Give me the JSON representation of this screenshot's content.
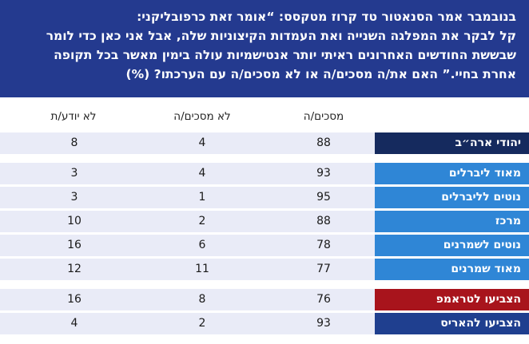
{
  "question": {
    "lines": [
      "בנובמבר אמר הסנאטור טד קרוז מטקסס: “אומר זאת כרפובליקני:",
      "קל לבקר את המפלגה השנייה ואת העמדות הקיצוניות שלה, אבל אני כאן כדי לומר",
      "שבששת החודשים האחרונים ראיתי יותר אנטישמיות עולה בימין מאשר בכל תקופה",
      "אחרת בחיי.” האם את/ה מסכים/ה או לא מסכים/ה עם הערכתו? (%)"
    ]
  },
  "chart_data": {
    "type": "table",
    "columns": [
      "מסכים/ה",
      "לא מסכים/ה",
      "לא יודע/ת"
    ],
    "groups": [
      {
        "rows": [
          {
            "label": "יהודי ארה״ב",
            "color": "#152a5e",
            "values": [
              88,
              4,
              8
            ]
          }
        ]
      },
      {
        "rows": [
          {
            "label": "מאוד ליברלים",
            "color": "#2f86d6",
            "values": [
              93,
              4,
              3
            ]
          },
          {
            "label": "נוטים לליברלים",
            "color": "#2f86d6",
            "values": [
              95,
              1,
              3
            ]
          },
          {
            "label": "מרכז",
            "color": "#2f86d6",
            "values": [
              88,
              2,
              10
            ]
          },
          {
            "label": "נוטים לשמרנים",
            "color": "#2f86d6",
            "values": [
              78,
              6,
              16
            ]
          },
          {
            "label": "מאוד שמרנים",
            "color": "#2f86d6",
            "values": [
              77,
              11,
              12
            ]
          }
        ]
      },
      {
        "rows": [
          {
            "label": "הצביעו לטראמפ",
            "color": "#a8141c",
            "values": [
              76,
              8,
              16
            ]
          },
          {
            "label": "הצביעו להאריס",
            "color": "#1f3f8f",
            "values": [
              93,
              2,
              4
            ]
          }
        ]
      }
    ]
  }
}
